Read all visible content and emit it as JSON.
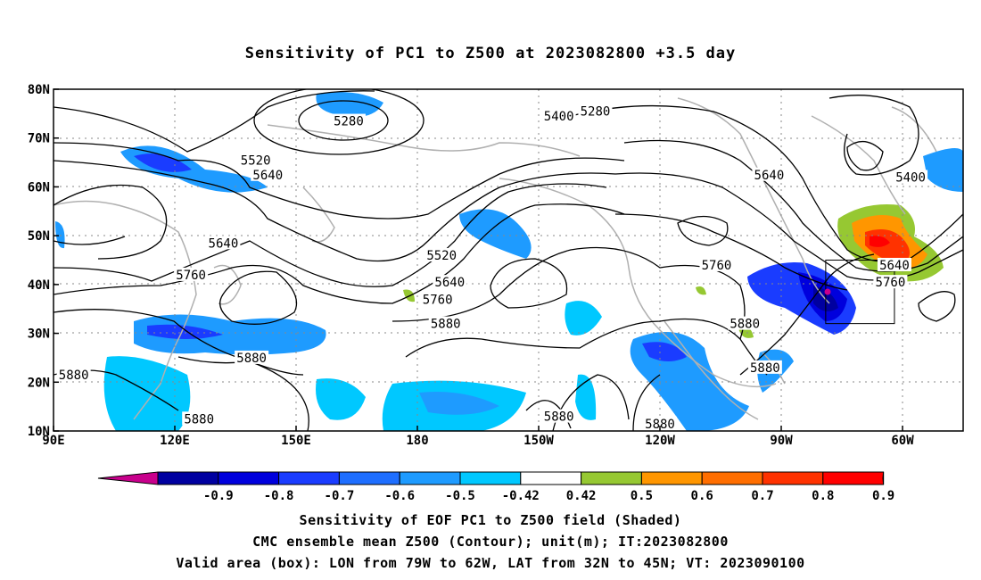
{
  "title": "Sensitivity of PC1 to Z500 at 2023082800 +3.5 day",
  "map": {
    "lat_ticks": [
      "80N",
      "70N",
      "60N",
      "50N",
      "40N",
      "30N",
      "20N",
      "10N"
    ],
    "lon_ticks": [
      "90E",
      "120E",
      "150E",
      "180",
      "150W",
      "120W",
      "90W",
      "60W"
    ],
    "lon_range": [
      90,
      315
    ],
    "lat_range": [
      10,
      80
    ],
    "box_label": "Valid area (box)",
    "contour_labels": [
      {
        "text": "5280",
        "lon": 224,
        "lat": 75.5
      },
      {
        "text": "5280",
        "lon": 163,
        "lat": 73.5
      },
      {
        "text": "5400",
        "lon": 215,
        "lat": 74.5
      },
      {
        "text": "5400",
        "lon": 302,
        "lat": 62
      },
      {
        "text": "5520",
        "lon": 140,
        "lat": 65.5
      },
      {
        "text": "5520",
        "lon": 186,
        "lat": 46
      },
      {
        "text": "5640",
        "lon": 143,
        "lat": 62.5
      },
      {
        "text": "5640",
        "lon": 132,
        "lat": 48.5
      },
      {
        "text": "5640",
        "lon": 267,
        "lat": 62.5
      },
      {
        "text": "5640",
        "lon": 188,
        "lat": 40.5
      },
      {
        "text": "5640",
        "lon": 298,
        "lat": 44
      },
      {
        "text": "5760",
        "lon": 124,
        "lat": 42
      },
      {
        "text": "5760",
        "lon": 185,
        "lat": 37
      },
      {
        "text": "5760",
        "lon": 254,
        "lat": 44
      },
      {
        "text": "5760",
        "lon": 297,
        "lat": 40.5
      },
      {
        "text": "5880",
        "lon": 187,
        "lat": 32
      },
      {
        "text": "5880",
        "lon": 139,
        "lat": 25
      },
      {
        "text": "5880",
        "lon": 95,
        "lat": 21.5
      },
      {
        "text": "5880",
        "lon": 261,
        "lat": 32
      },
      {
        "text": "5880",
        "lon": 266,
        "lat": 23
      },
      {
        "text": "5880",
        "lon": 126,
        "lat": 12.5
      },
      {
        "text": "5880",
        "lon": 215,
        "lat": 13
      },
      {
        "text": "5880",
        "lon": 240,
        "lat": 11.5
      }
    ],
    "valid_box": {
      "lon_min": 281,
      "lon_max": 298,
      "lat_min": 32,
      "lat_max": 45
    }
  },
  "colorbar": {
    "labels": [
      "-0.9",
      "-0.8",
      "-0.7",
      "-0.6",
      "-0.5",
      "-0.42",
      "0.42",
      "0.5",
      "0.6",
      "0.7",
      "0.8",
      "0.9"
    ],
    "colors": [
      "#0000a0",
      "#0000dd",
      "#1a3cff",
      "#1e6eff",
      "#1e9bff",
      "#00c8ff",
      "#ffffff",
      "#96c832",
      "#ff9600",
      "#ff6e00",
      "#ff3200",
      "#ff0000"
    ],
    "low_extend_color": "#c8008c",
    "high_extend_color": "#ffa0c8"
  },
  "captions": [
    "Sensitivity of EOF PC1 to Z500 field (Shaded)",
    "CMC ensemble mean Z500 (Contour); unit(m); IT:2023082800",
    "Valid area (box): LON from 79W to 62W, LAT from 32N to 45N; VT: 2023090100"
  ]
}
